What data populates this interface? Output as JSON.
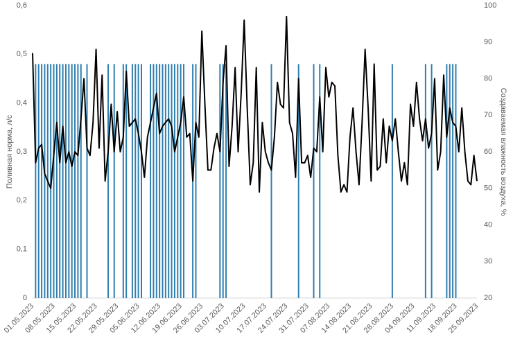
{
  "chart_data": {
    "type": "combo",
    "y_label": "Поливная норма, л/с",
    "y2_label": "Создаваемая влажность воздуха, %",
    "categories": [
      "01.05.2023",
      null,
      null,
      null,
      null,
      null,
      null,
      "08.05.2023",
      null,
      null,
      null,
      null,
      null,
      null,
      "15.05.2023",
      null,
      null,
      null,
      null,
      null,
      null,
      "22.05.2023",
      null,
      null,
      null,
      null,
      null,
      null,
      "29.05.2023",
      null,
      null,
      null,
      null,
      null,
      null,
      "05.06.2023",
      null,
      null,
      null,
      null,
      null,
      null,
      "12.06.2023",
      null,
      null,
      null,
      null,
      null,
      null,
      "19.06.2023",
      null,
      null,
      null,
      null,
      null,
      null,
      "26.06.2023",
      null,
      null,
      null,
      null,
      null,
      null,
      "03.07.2023",
      null,
      null,
      null,
      null,
      null,
      null,
      "10.07.2023",
      null,
      null,
      null,
      null,
      null,
      null,
      "17.07.2023",
      null,
      null,
      null,
      null,
      null,
      null,
      "24.07.2023",
      null,
      null,
      null,
      null,
      null,
      null,
      "31.07.2023",
      null,
      null,
      null,
      null,
      null,
      null,
      "07.08.2023",
      null,
      null,
      null,
      null,
      null,
      null,
      "14.08.2023",
      null,
      null,
      null,
      null,
      null,
      null,
      "21.08.2023",
      null,
      null,
      null,
      null,
      null,
      null,
      "28.08.2023",
      null,
      null,
      null,
      null,
      null,
      null,
      "04.09.2023",
      null,
      null,
      null,
      null,
      null,
      null,
      "11.09.2023",
      null,
      null,
      null,
      null,
      null,
      null,
      "18.09.2023",
      null,
      null,
      null,
      null,
      null,
      null,
      "25.09.2023"
    ],
    "series": [
      {
        "type": "bar",
        "color": "#2f7fae",
        "axis": "y",
        "values": [
          0,
          0.48,
          0.48,
          0.48,
          0.48,
          0.48,
          0.48,
          0.48,
          0.48,
          0.48,
          0.48,
          0.48,
          0.48,
          0.48,
          0.48,
          0.48,
          0.48,
          0,
          0.48,
          0,
          0,
          0,
          0,
          0,
          0,
          0.48,
          0,
          0.48,
          0,
          0,
          0.48,
          0.48,
          0,
          0.48,
          0.48,
          0.48,
          0.48,
          0,
          0,
          0.48,
          0.48,
          0.48,
          0.48,
          0.48,
          0.48,
          0.48,
          0.48,
          0.48,
          0.48,
          0.48,
          0.48,
          0,
          0,
          0.48,
          0.48,
          0,
          0,
          0,
          0,
          0,
          0,
          0,
          0.48,
          0.48,
          0.48,
          0,
          0,
          0,
          0,
          0,
          0,
          0,
          0,
          0,
          0,
          0,
          0,
          0,
          0,
          0.48,
          0,
          0,
          0,
          0,
          0,
          0,
          0,
          0,
          0.48,
          0,
          0,
          0,
          0,
          0.48,
          0,
          0.48,
          0,
          0,
          0,
          0,
          0,
          0,
          0,
          0,
          0,
          0,
          0,
          0,
          0,
          0,
          0,
          0,
          0,
          0,
          0,
          0,
          0,
          0,
          0,
          0.48,
          0,
          0,
          0,
          0,
          0,
          0,
          0,
          0,
          0,
          0,
          0.48,
          0,
          0.48,
          0,
          0,
          0,
          0,
          0.48,
          0.48,
          0.48,
          0.48,
          0,
          0,
          0,
          0,
          0,
          0,
          0
        ]
      },
      {
        "type": "line",
        "color": "#000000",
        "axis": "y2",
        "values": [
          87,
          57,
          61,
          62,
          54,
          52,
          50,
          59,
          68,
          57,
          67,
          57,
          60,
          56,
          60,
          59,
          69,
          80,
          61,
          59,
          68,
          88,
          61,
          81,
          52,
          60,
          73,
          60,
          71,
          60,
          64,
          82,
          67,
          68,
          69,
          65,
          60,
          53,
          64,
          68,
          72,
          76,
          65,
          67,
          68,
          69,
          67,
          60,
          64,
          68,
          75,
          64,
          65,
          52,
          68,
          64,
          93,
          73,
          55,
          55,
          61,
          65,
          60,
          79,
          89,
          56,
          67,
          83,
          60,
          76,
          96,
          72,
          51,
          57,
          83,
          49,
          68,
          60,
          57,
          55,
          64,
          79,
          73,
          72,
          97,
          68,
          65,
          53,
          80,
          57,
          57,
          59,
          53,
          61,
          60,
          75,
          60,
          83,
          75,
          79,
          78,
          59,
          49,
          51,
          49,
          64,
          72,
          60,
          51,
          68,
          88,
          72,
          52,
          84,
          55,
          56,
          69,
          57,
          67,
          63,
          69,
          60,
          52,
          57,
          51,
          73,
          67,
          79,
          69,
          63,
          69,
          61,
          65,
          80,
          55,
          60,
          81,
          64,
          72,
          68,
          67,
          60,
          72,
          60,
          52,
          51,
          59,
          52
        ]
      }
    ],
    "ylim": [
      0,
      0.6
    ],
    "yticks": [
      0,
      {
        "value": 0.1,
        "label": "0,1"
      },
      {
        "value": 0.2,
        "label": "0,2"
      },
      {
        "value": 0.3,
        "label": "0,3"
      },
      {
        "value": 0.4,
        "label": "0,4"
      },
      {
        "value": 0.5,
        "label": "0,5"
      },
      {
        "value": 0.6,
        "label": "0,6"
      }
    ],
    "y2lim": [
      20,
      100
    ],
    "y2ticks": [
      20,
      30,
      40,
      50,
      60,
      70,
      80,
      90,
      100
    ]
  }
}
